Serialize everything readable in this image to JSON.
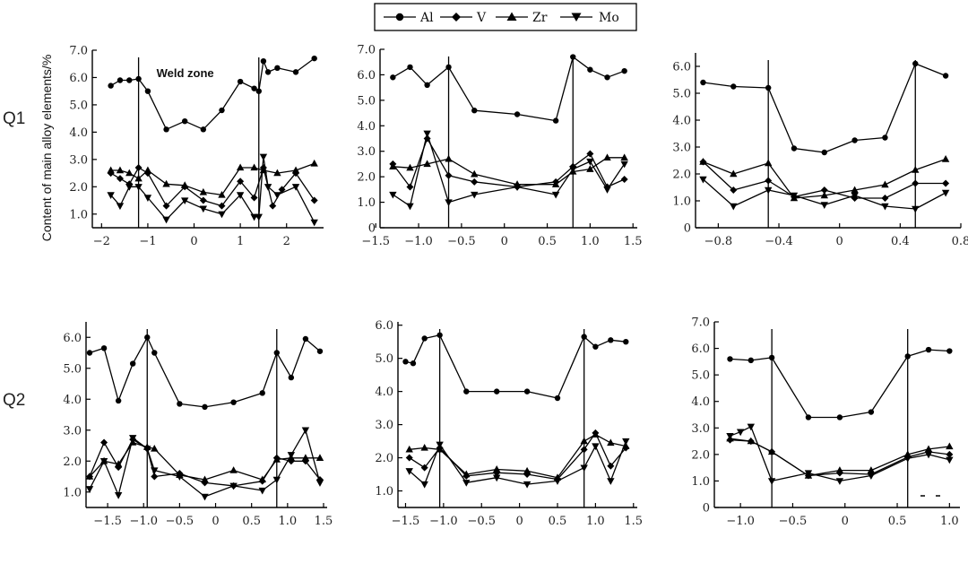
{
  "y_axis_label": "Content of main alloy elements/%",
  "row_labels": [
    "Q1",
    "Q2"
  ],
  "legend": [
    {
      "label": "Al",
      "marker": "circle-icon"
    },
    {
      "label": "V",
      "marker": "diamond-icon"
    },
    {
      "label": "Zr",
      "marker": "triangle-up-icon"
    },
    {
      "label": "Mo",
      "marker": "triangle-down-icon"
    }
  ],
  "chart_data": [
    {
      "type": "line",
      "row": "Q1",
      "annotation": "Weld zone",
      "xlim": [
        -2.2,
        2.8
      ],
      "ylim": [
        0.5,
        7.0
      ],
      "xticks": [
        -2,
        -1,
        0,
        1,
        2
      ],
      "xtick_labels": [
        "−2",
        "−1",
        "0",
        "1",
        "2"
      ],
      "yticks": [
        1,
        2,
        3,
        4,
        5,
        6,
        7
      ],
      "ytick_labels": [
        "1.0",
        "2.0",
        "3.0",
        "4.0",
        "5.0",
        "6.0",
        "7.0"
      ],
      "boundaries": [
        -1.2,
        1.4
      ],
      "series": [
        {
          "name": "Al",
          "x": [
            -1.8,
            -1.6,
            -1.4,
            -1.2,
            -1.0,
            -0.6,
            -0.2,
            0.2,
            0.6,
            1.0,
            1.3,
            1.4,
            1.5,
            1.6,
            1.8,
            2.2,
            2.6
          ],
          "y": [
            5.7,
            5.9,
            5.9,
            5.95,
            5.5,
            4.1,
            4.4,
            4.1,
            4.8,
            5.85,
            5.6,
            5.5,
            6.6,
            6.2,
            6.35,
            6.2,
            6.7
          ]
        },
        {
          "name": "V",
          "x": [
            -1.8,
            -1.6,
            -1.4,
            -1.2,
            -1.0,
            -0.6,
            -0.2,
            0.2,
            0.6,
            1.0,
            1.3,
            1.5,
            1.7,
            1.9,
            2.2,
            2.6
          ],
          "y": [
            2.5,
            2.3,
            2.1,
            2.7,
            2.5,
            1.3,
            2.0,
            1.5,
            1.3,
            2.2,
            1.6,
            2.7,
            1.3,
            1.9,
            2.5,
            1.5
          ]
        },
        {
          "name": "Zr",
          "x": [
            -1.8,
            -1.6,
            -1.4,
            -1.2,
            -1.0,
            -0.6,
            -0.2,
            0.2,
            0.6,
            1.0,
            1.3,
            1.5,
            1.8,
            2.2,
            2.6
          ],
          "y": [
            2.6,
            2.6,
            2.5,
            2.3,
            2.6,
            2.1,
            2.05,
            1.8,
            1.7,
            2.7,
            2.7,
            2.6,
            2.5,
            2.6,
            2.85
          ]
        },
        {
          "name": "Mo",
          "x": [
            -1.8,
            -1.6,
            -1.4,
            -1.2,
            -1.0,
            -0.6,
            -0.2,
            0.2,
            0.6,
            1.0,
            1.3,
            1.4,
            1.5,
            1.6,
            1.8,
            2.2,
            2.6
          ],
          "y": [
            1.7,
            1.3,
            2.0,
            2.0,
            1.6,
            0.8,
            1.5,
            1.2,
            1.0,
            1.7,
            0.9,
            0.9,
            3.1,
            2.0,
            1.7,
            2.0,
            0.7
          ]
        }
      ]
    },
    {
      "type": "line",
      "row": "Q1",
      "xlim": [
        -1.45,
        1.55
      ],
      "ylim": [
        0,
        7.0
      ],
      "xticks": [
        -1.5,
        -1.0,
        -0.5,
        0,
        0.5,
        1.0,
        1.5
      ],
      "xtick_labels": [
        "−1.5",
        "−1.0",
        "−0.5",
        "0",
        "0.5",
        "1.0",
        "1.5"
      ],
      "yticks": [
        0,
        1,
        2,
        3,
        4,
        5,
        6,
        7
      ],
      "ytick_labels": [
        "0",
        "1.0",
        "2.0",
        "3.0",
        "4.0",
        "5.0",
        "6.0",
        "7.0"
      ],
      "boundaries": [
        -0.65,
        0.8
      ],
      "series": [
        {
          "name": "Al",
          "x": [
            -1.3,
            -1.1,
            -0.9,
            -0.65,
            -0.35,
            0.15,
            0.6,
            0.8,
            1.0,
            1.2,
            1.4
          ],
          "y": [
            5.9,
            6.3,
            5.6,
            6.3,
            4.6,
            4.45,
            4.2,
            6.7,
            6.2,
            5.9,
            6.15
          ]
        },
        {
          "name": "V",
          "x": [
            -1.3,
            -1.1,
            -0.9,
            -0.65,
            -0.35,
            0.15,
            0.6,
            0.8,
            1.0,
            1.2,
            1.4
          ],
          "y": [
            2.5,
            1.6,
            3.5,
            2.05,
            1.8,
            1.6,
            1.8,
            2.4,
            2.9,
            1.6,
            1.9
          ]
        },
        {
          "name": "Zr",
          "x": [
            -1.3,
            -1.1,
            -0.9,
            -0.65,
            -0.35,
            0.15,
            0.6,
            0.8,
            1.0,
            1.2,
            1.4
          ],
          "y": [
            2.4,
            2.35,
            2.5,
            2.7,
            2.1,
            1.7,
            1.7,
            2.2,
            2.3,
            2.75,
            2.75
          ]
        },
        {
          "name": "Mo",
          "x": [
            -1.3,
            -1.1,
            -0.9,
            -0.65,
            -0.35,
            0.15,
            0.6,
            0.8,
            1.0,
            1.2,
            1.4
          ],
          "y": [
            1.3,
            0.85,
            3.7,
            1.0,
            1.3,
            1.6,
            1.3,
            2.3,
            2.6,
            1.5,
            2.5
          ]
        }
      ]
    },
    {
      "type": "line",
      "row": "Q1",
      "xlim": [
        -0.95,
        0.8
      ],
      "ylim": [
        0,
        6.5
      ],
      "xticks": [
        -0.8,
        -0.4,
        0,
        0.4,
        0.8
      ],
      "xtick_labels": [
        "−0.8",
        "−0.4",
        "0",
        "0.4",
        "0.8"
      ],
      "yticks": [
        0,
        1,
        2,
        3,
        4,
        5,
        6
      ],
      "ytick_labels": [
        "0",
        "1.0",
        "2.0",
        "3.0",
        "4.0",
        "5.0",
        "6.0"
      ],
      "boundaries": [
        -0.47,
        0.5
      ],
      "series": [
        {
          "name": "Al",
          "x": [
            -0.9,
            -0.7,
            -0.47,
            -0.3,
            -0.1,
            0.1,
            0.3,
            0.5,
            0.7
          ],
          "y": [
            5.4,
            5.25,
            5.2,
            2.95,
            2.8,
            3.25,
            3.35,
            6.1,
            5.65
          ]
        },
        {
          "name": "V",
          "x": [
            -0.9,
            -0.7,
            -0.47,
            -0.3,
            -0.1,
            0.1,
            0.3,
            0.5,
            0.7
          ],
          "y": [
            2.45,
            1.4,
            1.75,
            1.15,
            1.4,
            1.1,
            1.1,
            1.65,
            1.65
          ]
        },
        {
          "name": "Zr",
          "x": [
            -0.9,
            -0.7,
            -0.47,
            -0.3,
            -0.1,
            0.1,
            0.3,
            0.5,
            0.7
          ],
          "y": [
            2.45,
            2.0,
            2.4,
            1.1,
            1.2,
            1.4,
            1.6,
            2.15,
            2.55
          ]
        },
        {
          "name": "Mo",
          "x": [
            -0.9,
            -0.7,
            -0.47,
            -0.3,
            -0.1,
            0.1,
            0.3,
            0.5,
            0.7
          ],
          "y": [
            1.8,
            0.8,
            1.4,
            1.2,
            0.85,
            1.2,
            0.8,
            0.7,
            1.3
          ]
        }
      ]
    },
    {
      "type": "line",
      "row": "Q2",
      "xlim": [
        -1.8,
        1.55
      ],
      "ylim": [
        0.5,
        6.5
      ],
      "xticks": [
        -1.5,
        -1.0,
        -0.5,
        0,
        0.5,
        1.0,
        1.5
      ],
      "xtick_labels": [
        "−1.5",
        "−1.0",
        "−0.5",
        "0",
        "0.5",
        "1.0",
        "1.5"
      ],
      "yticks": [
        1,
        2,
        3,
        4,
        5,
        6
      ],
      "ytick_labels": [
        "1.0",
        "2.0",
        "3.0",
        "4.0",
        "5.0",
        "6.0"
      ],
      "boundaries": [
        -0.95,
        0.85
      ],
      "series": [
        {
          "name": "Al",
          "x": [
            -1.75,
            -1.55,
            -1.35,
            -1.15,
            -0.95,
            -0.85,
            -0.5,
            -0.15,
            0.25,
            0.65,
            0.85,
            1.05,
            1.25,
            1.45
          ],
          "y": [
            5.5,
            5.65,
            3.95,
            5.15,
            6.0,
            5.5,
            3.85,
            3.75,
            3.9,
            4.2,
            5.5,
            4.7,
            5.95,
            5.55
          ]
        },
        {
          "name": "V",
          "x": [
            -1.75,
            -1.55,
            -1.35,
            -1.15,
            -0.95,
            -0.85,
            -0.5,
            -0.15,
            0.25,
            0.65,
            0.85,
            1.05,
            1.25,
            1.45
          ],
          "y": [
            1.5,
            2.6,
            1.8,
            2.7,
            2.4,
            1.5,
            1.6,
            1.3,
            1.2,
            1.35,
            2.1,
            2.0,
            2.0,
            1.4
          ]
        },
        {
          "name": "Zr",
          "x": [
            -1.75,
            -1.55,
            -1.35,
            -1.15,
            -0.95,
            -0.85,
            -0.5,
            -0.15,
            0.25,
            0.65,
            0.85,
            1.05,
            1.25,
            1.45
          ],
          "y": [
            1.5,
            2.0,
            1.9,
            2.6,
            2.45,
            2.4,
            1.55,
            1.4,
            1.7,
            1.4,
            2.05,
            2.1,
            2.1,
            2.1
          ]
        },
        {
          "name": "Mo",
          "x": [
            -1.75,
            -1.55,
            -1.35,
            -1.15,
            -0.95,
            -0.85,
            -0.5,
            -0.15,
            0.25,
            0.65,
            0.85,
            1.05,
            1.25,
            1.45
          ],
          "y": [
            1.1,
            2.0,
            0.9,
            2.75,
            2.4,
            1.7,
            1.5,
            0.85,
            1.2,
            1.05,
            1.4,
            2.2,
            3.0,
            1.3
          ]
        }
      ]
    },
    {
      "type": "line",
      "row": "Q2",
      "xlim": [
        -1.6,
        1.55
      ],
      "ylim": [
        0.5,
        6.1
      ],
      "xticks": [
        -1.5,
        -1.0,
        -0.5,
        0,
        0.5,
        1.0,
        1.5
      ],
      "xtick_labels": [
        "−1.5",
        "−1.0",
        "−0.5",
        "0",
        "0.5",
        "1.0",
        "1.5"
      ],
      "yticks": [
        1,
        2,
        3,
        4,
        5,
        6
      ],
      "ytick_labels": [
        "1.0",
        "2.0",
        "3.0",
        "4.0",
        "5.0",
        "6.0"
      ],
      "boundaries": [
        -1.05,
        0.85
      ],
      "series": [
        {
          "name": "Al",
          "x": [
            -1.5,
            -1.4,
            -1.25,
            -1.05,
            -0.7,
            -0.3,
            0.1,
            0.5,
            0.85,
            1.0,
            1.2,
            1.4
          ],
          "y": [
            4.9,
            4.85,
            5.6,
            5.7,
            4.0,
            4.0,
            4.0,
            3.8,
            5.65,
            5.35,
            5.55,
            5.5
          ]
        },
        {
          "name": "V",
          "x": [
            -1.45,
            -1.25,
            -1.05,
            -0.7,
            -0.3,
            0.1,
            0.5,
            0.85,
            1.0,
            1.2,
            1.4
          ],
          "y": [
            2.0,
            1.7,
            2.3,
            1.45,
            1.55,
            1.5,
            1.35,
            2.25,
            2.75,
            1.75,
            2.3
          ]
        },
        {
          "name": "Zr",
          "x": [
            -1.45,
            -1.25,
            -1.05,
            -0.7,
            -0.3,
            0.1,
            0.5,
            0.85,
            1.0,
            1.2,
            1.4
          ],
          "y": [
            2.25,
            2.3,
            2.25,
            1.5,
            1.65,
            1.6,
            1.4,
            2.5,
            2.7,
            2.45,
            2.35
          ]
        },
        {
          "name": "Mo",
          "x": [
            -1.45,
            -1.25,
            -1.05,
            -0.7,
            -0.3,
            0.1,
            0.5,
            0.85,
            1.0,
            1.2,
            1.4
          ],
          "y": [
            1.6,
            1.2,
            2.4,
            1.25,
            1.4,
            1.2,
            1.3,
            1.7,
            2.35,
            1.3,
            2.5
          ]
        }
      ]
    },
    {
      "type": "line",
      "row": "Q2",
      "xlim": [
        -1.25,
        1.1
      ],
      "ylim": [
        0,
        7.0
      ],
      "xticks": [
        -1.0,
        -0.5,
        0,
        0.5,
        1.0
      ],
      "xtick_labels": [
        "−1.0",
        "−0.5",
        "0",
        "0.5",
        "1.0"
      ],
      "yticks": [
        0,
        1,
        2,
        3,
        4,
        5,
        6,
        7
      ],
      "ytick_labels": [
        "0",
        "1.0",
        "2.0",
        "3.0",
        "4.0",
        "5.0",
        "6.0",
        "7.0"
      ],
      "boundaries": [
        -0.7,
        0.6
      ],
      "series": [
        {
          "name": "Al",
          "x": [
            -1.1,
            -0.9,
            -0.7,
            -0.35,
            -0.05,
            0.25,
            0.6,
            0.8,
            1.0
          ],
          "y": [
            5.6,
            5.55,
            5.65,
            3.4,
            3.4,
            3.6,
            5.7,
            5.95,
            5.9
          ]
        },
        {
          "name": "V",
          "x": [
            -1.1,
            -0.9,
            -0.7,
            -0.35,
            -0.05,
            0.25,
            0.6,
            0.8,
            1.0
          ],
          "y": [
            2.55,
            2.5,
            2.1,
            1.2,
            1.3,
            1.25,
            1.9,
            2.1,
            2.0
          ]
        },
        {
          "name": "Zr",
          "x": [
            -1.1,
            -0.9,
            -0.7,
            -0.35,
            -0.05,
            0.25,
            0.6,
            0.8,
            1.0
          ],
          "y": [
            2.6,
            2.5,
            2.1,
            1.2,
            1.4,
            1.4,
            2.0,
            2.2,
            2.3
          ]
        },
        {
          "name": "Mo",
          "x": [
            -1.1,
            -1.0,
            -0.9,
            -0.7,
            -0.35,
            -0.05,
            0.25,
            0.6,
            0.8,
            1.0
          ],
          "y": [
            2.7,
            2.85,
            3.05,
            1.0,
            1.3,
            1.0,
            1.2,
            1.85,
            2.0,
            1.8
          ]
        }
      ]
    }
  ]
}
